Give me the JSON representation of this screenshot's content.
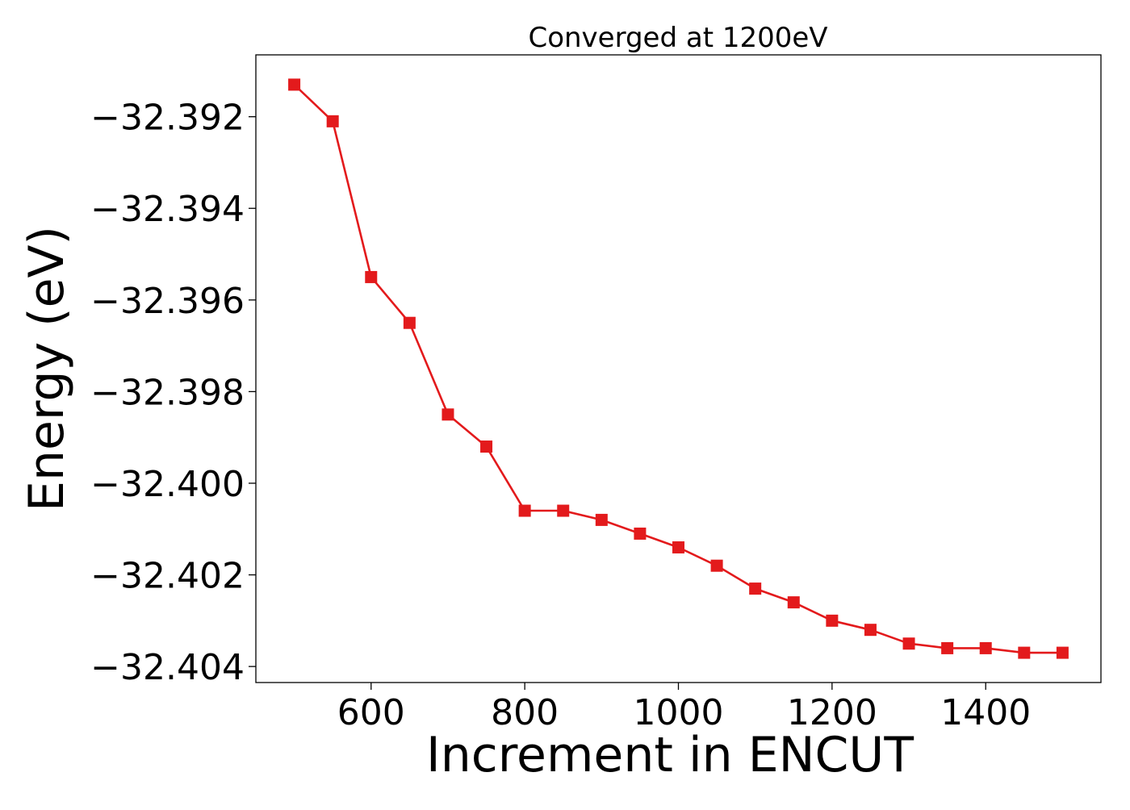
{
  "chart_data": {
    "type": "line",
    "title": "Converged at 1200eV",
    "xlabel": "Increment in ENCUT",
    "ylabel": "Energy (eV)",
    "x": [
      500,
      550,
      600,
      650,
      700,
      750,
      800,
      850,
      900,
      950,
      1000,
      1050,
      1100,
      1150,
      1200,
      1250,
      1300,
      1350,
      1400,
      1450,
      1500
    ],
    "series": [
      {
        "name": "",
        "color": "#e31a1c",
        "marker": "square",
        "values": [
          -32.3913,
          -32.3921,
          -32.3955,
          -32.3965,
          -32.3985,
          -32.3992,
          -32.4006,
          -32.4006,
          -32.4008,
          -32.4011,
          -32.4014,
          -32.4018,
          -32.4023,
          -32.4026,
          -32.403,
          -32.4032,
          -32.4035,
          -32.4036,
          -32.4036,
          -32.4037,
          -32.4037
        ]
      }
    ],
    "xlim": [
      450,
      1550
    ],
    "ylim": [
      -32.40435,
      -32.39065
    ],
    "xticks": [
      600,
      800,
      1000,
      1200,
      1400
    ],
    "xtick_labels": [
      "600",
      "800",
      "1000",
      "1200",
      "1400"
    ],
    "yticks": [
      -32.392,
      -32.394,
      -32.396,
      -32.398,
      -32.4,
      -32.402,
      -32.404
    ],
    "ytick_labels": [
      "−32.392",
      "−32.394",
      "−32.396",
      "−32.398",
      "−32.400",
      "−32.402",
      "−32.404"
    ],
    "grid": false,
    "legend": "none"
  }
}
